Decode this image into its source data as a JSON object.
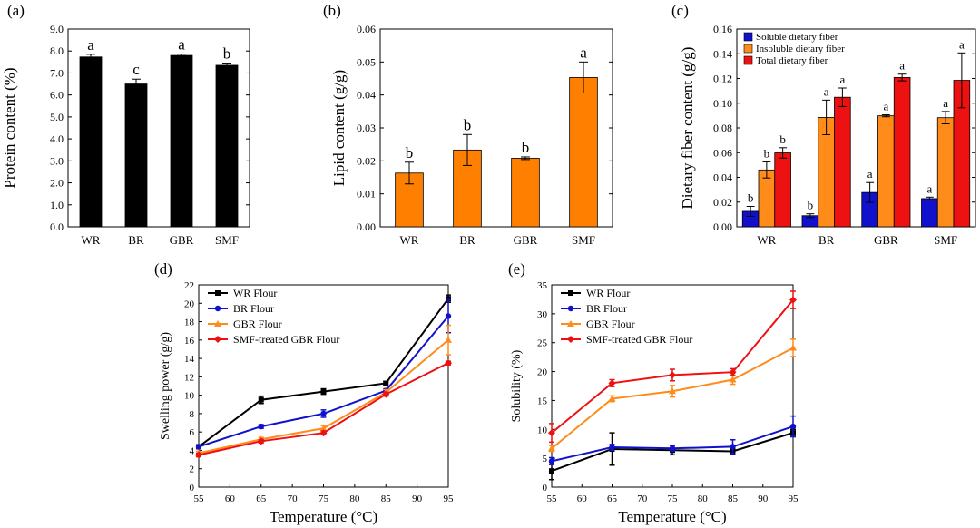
{
  "chart_data": [
    {
      "id": "a",
      "panel_label": "(a)",
      "type": "bar",
      "ylabel": "Protein content (%)",
      "xlabel": "",
      "categories": [
        "WR",
        "BR",
        "GBR",
        "SMF"
      ],
      "ylim": [
        0,
        9
      ],
      "yticks": [
        0,
        1,
        2,
        3,
        4,
        5,
        6,
        7,
        8,
        9
      ],
      "tick_decimals": 1,
      "series": [
        {
          "color": "#000000",
          "values": [
            7.73,
            6.5,
            7.8,
            7.35
          ],
          "errors": [
            0.12,
            0.22,
            0.06,
            0.1
          ],
          "letters": [
            "a",
            "c",
            "a",
            "b"
          ]
        }
      ]
    },
    {
      "id": "b",
      "panel_label": "(b)",
      "type": "bar",
      "ylabel": "Lipid content (g/g)",
      "xlabel": "",
      "categories": [
        "WR",
        "BR",
        "GBR",
        "SMF"
      ],
      "ylim": [
        0,
        0.06
      ],
      "yticks": [
        0,
        0.01,
        0.02,
        0.03,
        0.04,
        0.05,
        0.06
      ],
      "tick_decimals": 2,
      "series": [
        {
          "color": "#FF7F00",
          "values": [
            0.0163,
            0.0233,
            0.0208,
            0.0453
          ],
          "errors": [
            0.0033,
            0.0047,
            0.0004,
            0.0047
          ],
          "letters": [
            "b",
            "b",
            "b",
            "a"
          ]
        }
      ]
    },
    {
      "id": "c",
      "panel_label": "(c)",
      "type": "bar",
      "ylabel": "Dietary fiber content (g/g)",
      "xlabel": "",
      "categories": [
        "WR",
        "BR",
        "GBR",
        "SMF"
      ],
      "ylim": [
        0,
        0.16
      ],
      "yticks": [
        0,
        0.02,
        0.04,
        0.06,
        0.08,
        0.1,
        0.12,
        0.14,
        0.16
      ],
      "tick_decimals": 2,
      "legend_position": "top-left",
      "series": [
        {
          "name": "Soluble dietary fiber",
          "color": "#1111CC",
          "values": [
            0.0125,
            0.009,
            0.0278,
            0.0228
          ],
          "errors": [
            0.004,
            0.0015,
            0.008,
            0.0012
          ],
          "letters": [
            "b",
            "b",
            "a",
            "a"
          ]
        },
        {
          "name": "Insoluble dietary fiber",
          "color": "#FF8C1A",
          "values": [
            0.046,
            0.0885,
            0.0898,
            0.0883
          ],
          "errors": [
            0.0065,
            0.014,
            0.0008,
            0.005
          ],
          "letters": [
            "b",
            "a",
            "a",
            "a"
          ]
        },
        {
          "name": "Total dietary fiber",
          "color": "#EE1111",
          "values": [
            0.0598,
            0.1048,
            0.1208,
            0.1185
          ],
          "errors": [
            0.0042,
            0.0075,
            0.0027,
            0.0222
          ],
          "letters": [
            "b",
            "a",
            "a",
            "a"
          ]
        }
      ]
    },
    {
      "id": "d",
      "panel_label": "(d)",
      "type": "line",
      "ylabel": "Swelling power (g/g)",
      "xlabel": "Temperature (°C)",
      "x": [
        55,
        65,
        75,
        85,
        95
      ],
      "xlim": [
        55,
        95
      ],
      "xticks": [
        55,
        60,
        65,
        70,
        75,
        80,
        85,
        90,
        95
      ],
      "ylim": [
        0,
        22
      ],
      "yticks": [
        0,
        2,
        4,
        6,
        8,
        10,
        12,
        14,
        16,
        18,
        20,
        22
      ],
      "tick_decimals": 0,
      "legend_position": "top-left",
      "series": [
        {
          "name": "WR Flour",
          "color": "#000000",
          "values": [
            4.4,
            9.5,
            10.4,
            11.3,
            20.5
          ],
          "errors": [
            0.2,
            0.4,
            0.3,
            0.2,
            0.4
          ]
        },
        {
          "name": "BR Flour",
          "color": "#1111CC",
          "values": [
            4.4,
            6.6,
            8.0,
            10.5,
            18.6
          ],
          "errors": [
            0.2,
            0.2,
            0.4,
            0.2,
            1.8
          ]
        },
        {
          "name": "GBR Flour",
          "color": "#FF8C1A",
          "values": [
            3.7,
            5.2,
            6.4,
            10.3,
            16.0
          ],
          "errors": [
            0.2,
            0.2,
            0.3,
            0.3,
            1.6
          ]
        },
        {
          "name": "SMF-treated GBR Flour",
          "color": "#EE1111",
          "values": [
            3.5,
            5.0,
            5.9,
            10.1,
            13.5
          ],
          "errors": [
            0.2,
            0.2,
            0.2,
            0.2,
            0.2
          ]
        }
      ]
    },
    {
      "id": "e",
      "panel_label": "(e)",
      "type": "line",
      "ylabel": "Solubility (%)",
      "xlabel": "Temperature (°C)",
      "x": [
        55,
        65,
        75,
        85,
        95
      ],
      "xlim": [
        55,
        95
      ],
      "xticks": [
        55,
        60,
        65,
        70,
        75,
        80,
        85,
        90,
        95
      ],
      "ylim": [
        0,
        35
      ],
      "yticks": [
        0,
        5,
        10,
        15,
        20,
        25,
        30,
        35
      ],
      "tick_decimals": 0,
      "legend_position": "top-left",
      "series": [
        {
          "name": "WR Flour",
          "color": "#000000",
          "values": [
            2.8,
            6.6,
            6.4,
            6.2,
            9.4
          ],
          "errors": [
            1.5,
            2.8,
            0.8,
            0.5,
            0.6
          ]
        },
        {
          "name": "BR Flour",
          "color": "#1111CC",
          "values": [
            4.5,
            6.9,
            6.7,
            7.0,
            10.5
          ],
          "errors": [
            0.6,
            0.5,
            0.5,
            1.2,
            1.8
          ]
        },
        {
          "name": "GBR Flour",
          "color": "#FF8C1A",
          "values": [
            6.7,
            15.3,
            16.6,
            18.6,
            24.1
          ],
          "errors": [
            0.5,
            0.5,
            1.0,
            0.8,
            1.5
          ]
        },
        {
          "name": "SMF-treated GBR Flour",
          "color": "#EE1111",
          "values": [
            9.4,
            18.0,
            19.4,
            19.9,
            32.4
          ],
          "errors": [
            1.6,
            0.6,
            1.0,
            0.6,
            1.5
          ]
        }
      ]
    }
  ]
}
